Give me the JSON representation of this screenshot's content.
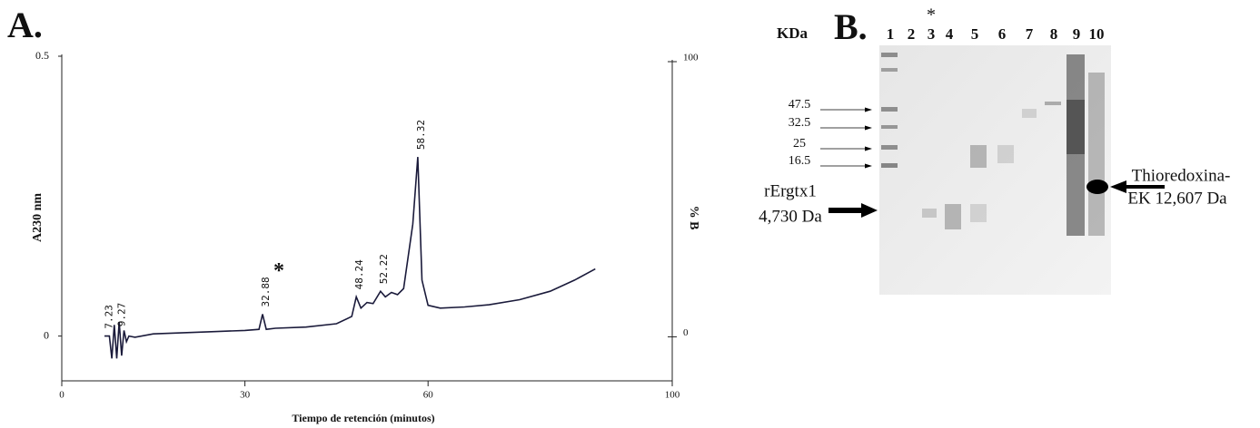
{
  "chart_data": {
    "type": "line",
    "panel_label": "A.",
    "y_label": "A230 nm",
    "y2_label": "% B",
    "x_label": "Tiempo de retención (minutos)",
    "xlim": [
      0,
      100
    ],
    "xticks": [
      0,
      30,
      60,
      100
    ],
    "ylim": [
      -0.08,
      0.5
    ],
    "yticks": [
      0,
      0.5
    ],
    "y2lim": [
      -16,
      100
    ],
    "y2ticks": [
      0,
      100
    ],
    "series": [
      {
        "color": "#1a1a3a",
        "x": [
          7,
          7.8,
          8.2,
          8.6,
          9.0,
          9.4,
          9.8,
          10.2,
          10.6,
          11,
          12,
          15,
          20,
          25,
          30,
          32.3,
          32.88,
          33.5,
          35,
          40,
          45,
          47.5,
          48.24,
          49,
          50,
          51,
          52.22,
          53,
          54,
          55,
          56,
          57.5,
          58.32,
          59,
          60,
          62,
          66,
          70,
          75,
          80,
          84,
          87.4
        ],
        "values": [
          0,
          0,
          -0.04,
          0.02,
          -0.04,
          0.025,
          -0.035,
          0.01,
          -0.01,
          0,
          -0.002,
          0.004,
          0.006,
          0.008,
          0.01,
          0.012,
          0.039,
          0.012,
          0.014,
          0.016,
          0.022,
          0.035,
          0.07,
          0.05,
          0.06,
          0.058,
          0.08,
          0.07,
          0.078,
          0.074,
          0.085,
          0.2,
          0.32,
          0.1,
          0.055,
          0.05,
          0.052,
          0.056,
          0.065,
          0.08,
          0.1,
          0.12
        ]
      }
    ],
    "peaks": [
      {
        "value": 7.23,
        "label": "7.23"
      },
      {
        "value": 9.27,
        "label": "9.27"
      },
      {
        "value": 32.88,
        "label": "32.88"
      },
      {
        "value": 48.24,
        "label": "48.24"
      },
      {
        "value": 52.22,
        "label": "52.22"
      },
      {
        "value": 58.32,
        "label": "58.32"
      }
    ],
    "marked_peak": "*"
  },
  "gel": {
    "panel_label": "B.",
    "kda_label": "KDa",
    "lanes": [
      "1",
      "2",
      "3",
      "4",
      "5",
      "6",
      "7",
      "8",
      "9",
      "10"
    ],
    "lane_mark": "*",
    "markers": [
      "47.5",
      "32.5",
      "25",
      "16.5"
    ],
    "left_annotation": [
      "rErgtx1",
      "4,730 Da"
    ],
    "right_annotation": [
      "Thioredoxina-",
      "EK 12,607 Da"
    ]
  }
}
